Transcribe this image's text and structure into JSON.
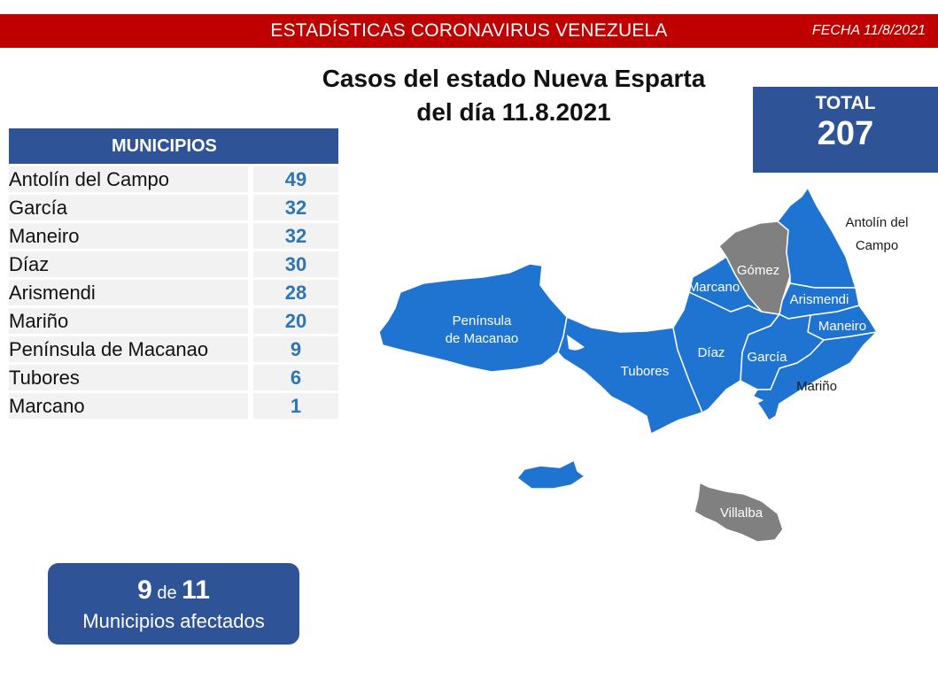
{
  "header": {
    "title": "ESTADÍSTICAS CORONAVIRUS VENEZUELA",
    "date": "FECHA 11/8/2021"
  },
  "heading": {
    "line1": "Casos del estado Nueva Esparta",
    "line2": "del día 11.8.2021"
  },
  "total": {
    "label": "TOTAL",
    "value": "207"
  },
  "table": {
    "header": "MUNICIPIOS",
    "rows": [
      {
        "name": "Antolín del Campo",
        "value": "49"
      },
      {
        "name": "García",
        "value": "32"
      },
      {
        "name": "Maneiro",
        "value": "32"
      },
      {
        "name": "Díaz",
        "value": "30"
      },
      {
        "name": "Arismendi",
        "value": "28"
      },
      {
        "name": "Mariño",
        "value": "20"
      },
      {
        "name": "Península de Macanao",
        "value": "9"
      },
      {
        "name": "Tubores",
        "value": "6"
      },
      {
        "name": "Marcano",
        "value": "1"
      }
    ]
  },
  "affected": {
    "count": "9",
    "of": "de",
    "total": "11",
    "label": "Municipios afectados"
  },
  "map": {
    "colors": {
      "affected": "#1f74d2",
      "unaffected": "#808080",
      "border": "#ffffff"
    },
    "labels": {
      "macanao_1": "Península",
      "macanao_2": "de Macanao",
      "tubores": "Tubores",
      "diaz": "Díaz",
      "garcia": "García",
      "marcano": "Marcano",
      "gomez": "Gómez",
      "arismendi": "Arismendi",
      "maneiro": "Maneiro",
      "marino": "Mariño",
      "antolin_1": "Antolín del",
      "antolin_2": "Campo",
      "villalba": "Villalba"
    }
  }
}
